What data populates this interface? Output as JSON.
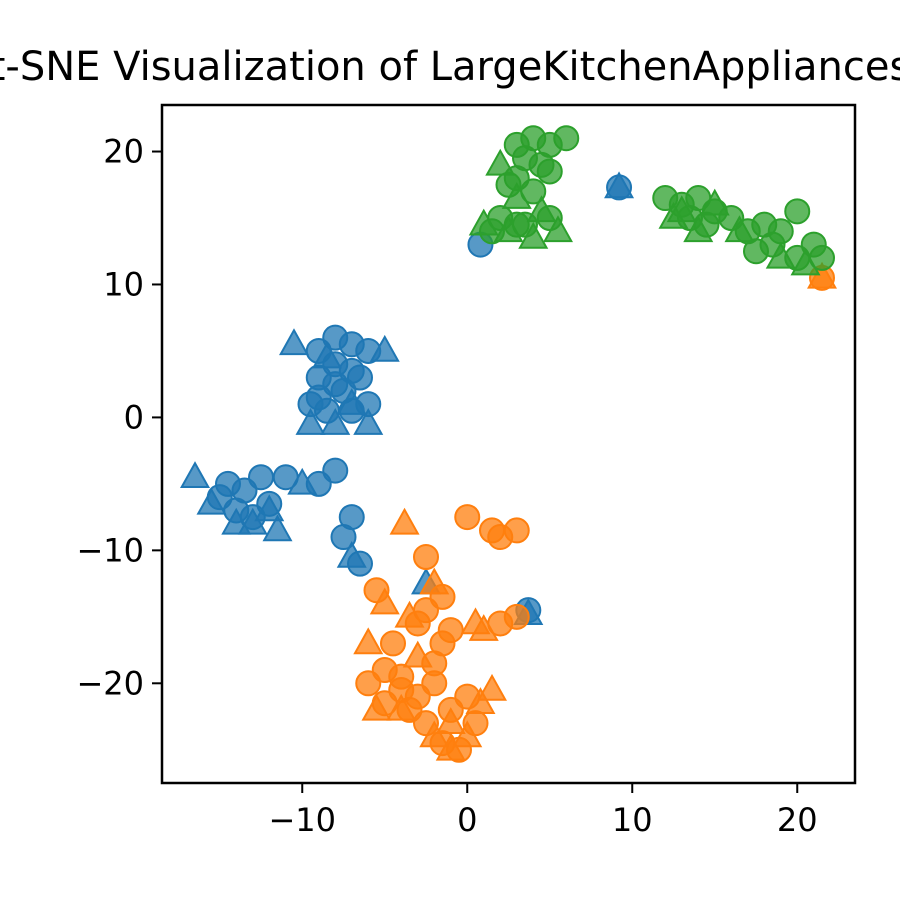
{
  "chart_data": {
    "type": "scatter",
    "title": "t-SNE Visualization of LargeKitchenAppliances",
    "xlabel": "",
    "ylabel": "",
    "xlim": [
      -18.5,
      23.5
    ],
    "ylim": [
      -27.5,
      23.5
    ],
    "x_ticks": [
      -10,
      0,
      10,
      20
    ],
    "y_ticks": [
      20,
      10,
      0,
      -10,
      -20
    ],
    "x_tick_labels": [
      "−10",
      "0",
      "10",
      "20"
    ],
    "y_tick_labels": [
      "20",
      "10",
      "0",
      "−10",
      "−20"
    ],
    "grid": false,
    "legend": "none",
    "marker_alpha": 0.75,
    "series": [
      {
        "color": "#1f77b4",
        "markers": "circle",
        "points": [
          [
            -8,
            6
          ],
          [
            -9,
            5
          ],
          [
            -7,
            5.5
          ],
          [
            -6,
            5
          ],
          [
            -8,
            4
          ],
          [
            -7,
            3.5
          ],
          [
            -9,
            3
          ],
          [
            -6.5,
            3
          ],
          [
            -8,
            2.5
          ],
          [
            -7.5,
            2
          ],
          [
            -9,
            1.5
          ],
          [
            -6,
            1
          ],
          [
            -8.5,
            0.5
          ],
          [
            -7,
            0.5
          ],
          [
            -9.5,
            1
          ],
          [
            -14.5,
            -5
          ],
          [
            -13.5,
            -5.5
          ],
          [
            -15,
            -6
          ],
          [
            -12,
            -6.5
          ],
          [
            -11,
            -4.5
          ],
          [
            -12.5,
            -4.5
          ],
          [
            -14,
            -7
          ],
          [
            -13,
            -7.5
          ],
          [
            -9,
            -5
          ],
          [
            -8,
            -4
          ],
          [
            -7,
            -7.5
          ],
          [
            -7.5,
            -9
          ],
          [
            -6.5,
            -11
          ],
          [
            0.8,
            13
          ],
          [
            9.2,
            17.3
          ],
          [
            3.7,
            -14.5
          ]
        ]
      },
      {
        "color": "#1f77b4",
        "markers": "triangle",
        "points": [
          [
            -10.5,
            5.5
          ],
          [
            -5,
            5
          ],
          [
            -9.5,
            -0.5
          ],
          [
            -8,
            -0.5
          ],
          [
            -6,
            -0.5
          ],
          [
            -8.5,
            4.5
          ],
          [
            -7,
            1
          ],
          [
            -16.5,
            -4.5
          ],
          [
            -15.5,
            -6.5
          ],
          [
            -13,
            -8
          ],
          [
            -11.5,
            -8.5
          ],
          [
            -10,
            -5
          ],
          [
            -14,
            -8
          ],
          [
            -7,
            -10.5
          ],
          [
            -2.5,
            -12.5
          ],
          [
            9.2,
            17.3
          ],
          [
            3.7,
            -14.8
          ],
          [
            -12,
            -7
          ]
        ]
      },
      {
        "color": "#ff7f0e",
        "markers": "circle",
        "points": [
          [
            0,
            -7.5
          ],
          [
            1.5,
            -8.5
          ],
          [
            3,
            -8.5
          ],
          [
            2,
            -9
          ],
          [
            -2.5,
            -10.5
          ],
          [
            -5.5,
            -13
          ],
          [
            -1.5,
            -13.5
          ],
          [
            -2.5,
            -14.5
          ],
          [
            -3,
            -15.5
          ],
          [
            -1,
            -16
          ],
          [
            2,
            -15.5
          ],
          [
            3,
            -15
          ],
          [
            -4.5,
            -17
          ],
          [
            -1.5,
            -17
          ],
          [
            -6,
            -20
          ],
          [
            -5,
            -19
          ],
          [
            -4,
            -19.5
          ],
          [
            -3,
            -21
          ],
          [
            -2,
            -18.5
          ],
          [
            -3.5,
            -22
          ],
          [
            -2.5,
            -23
          ],
          [
            -1,
            -22
          ],
          [
            0,
            -21
          ],
          [
            0.5,
            -23
          ],
          [
            -1.5,
            -24.5
          ],
          [
            -0.5,
            -25
          ],
          [
            -5,
            -21.5
          ],
          [
            -2,
            -20
          ],
          [
            -4,
            -20.5
          ],
          [
            21.5,
            10.5
          ]
        ]
      },
      {
        "color": "#ff7f0e",
        "markers": "triangle",
        "points": [
          [
            -3.8,
            -8
          ],
          [
            -5,
            -14
          ],
          [
            -3.5,
            -15
          ],
          [
            -2,
            -12.5
          ],
          [
            -6,
            -17
          ],
          [
            -4,
            -22
          ],
          [
            -2,
            -24
          ],
          [
            0.8,
            -21.5
          ],
          [
            1.5,
            -20.5
          ],
          [
            -1,
            -23
          ],
          [
            -5.5,
            -22
          ],
          [
            1,
            -16
          ],
          [
            -3,
            -18
          ],
          [
            -1,
            -25
          ],
          [
            0,
            -24
          ],
          [
            0.5,
            -15.5
          ],
          [
            21.5,
            10.5
          ]
        ]
      },
      {
        "color": "#2ca02c",
        "markers": "circle",
        "points": [
          [
            3,
            20.5
          ],
          [
            4,
            21
          ],
          [
            5,
            20.5
          ],
          [
            6,
            21
          ],
          [
            3.5,
            19.5
          ],
          [
            4.5,
            19
          ],
          [
            5,
            18.5
          ],
          [
            3,
            18
          ],
          [
            2.5,
            17.5
          ],
          [
            4,
            17
          ],
          [
            2,
            15
          ],
          [
            3.5,
            14.5
          ],
          [
            5,
            15
          ],
          [
            1.5,
            14
          ],
          [
            3,
            14.5
          ],
          [
            12,
            16.5
          ],
          [
            13,
            16
          ],
          [
            14,
            16.5
          ],
          [
            15,
            15.5
          ],
          [
            13.5,
            15
          ],
          [
            14.5,
            14.5
          ],
          [
            16,
            15
          ],
          [
            17,
            14
          ],
          [
            18,
            14.5
          ],
          [
            19,
            14
          ],
          [
            18.5,
            13
          ],
          [
            17.5,
            12.5
          ],
          [
            20,
            15.5
          ],
          [
            21,
            13
          ],
          [
            20,
            12
          ],
          [
            21.5,
            12
          ]
        ]
      },
      {
        "color": "#2ca02c",
        "markers": "triangle",
        "points": [
          [
            2,
            19
          ],
          [
            3,
            16.5
          ],
          [
            4.5,
            15.5
          ],
          [
            1,
            14.5
          ],
          [
            5.5,
            14
          ],
          [
            2.5,
            14
          ],
          [
            4,
            13.5
          ],
          [
            13,
            15.5
          ],
          [
            15,
            16
          ],
          [
            16.5,
            14
          ],
          [
            19,
            12
          ],
          [
            20.5,
            11.5
          ],
          [
            12.5,
            15
          ],
          [
            14,
            14
          ]
        ]
      }
    ]
  }
}
